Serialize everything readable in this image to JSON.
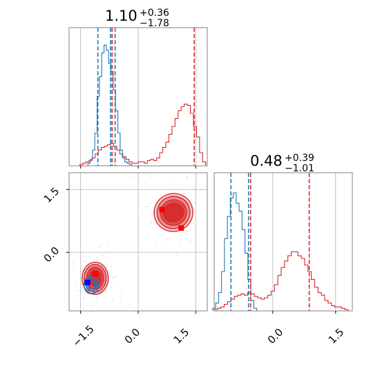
{
  "chart_data": {
    "type": "corner",
    "colors": {
      "blue": "#1f77b4",
      "red": "#d62728",
      "grid": "#b0b0b0",
      "axis": "#808080"
    },
    "param_1": {
      "title": {
        "value": "1.10",
        "upper": "+0.36",
        "lower": "−1.78"
      },
      "range": [
        -1.8,
        1.8
      ],
      "ticks": [
        -1.5,
        0.0,
        1.5
      ],
      "tick_labels": [
        "−1.5",
        "0.0",
        "1.5"
      ],
      "red_hist": {
        "x": [
          -1.56,
          -1.48,
          -1.4,
          -1.32,
          -1.24,
          -1.16,
          -1.08,
          -1.0,
          -0.92,
          -0.84,
          -0.76,
          -0.68,
          -0.6,
          -0.52,
          -0.44,
          -0.36,
          -0.28,
          -0.2,
          -0.12,
          -0.04,
          0.04,
          0.12,
          0.2,
          0.28,
          0.36,
          0.44,
          0.52,
          0.6,
          0.68,
          0.76,
          0.84,
          0.92,
          1.0,
          1.08,
          1.16,
          1.24,
          1.32,
          1.4,
          1.48,
          1.56,
          1.64,
          1.72
        ],
        "y": [
          0,
          1,
          2,
          3,
          4,
          6,
          9,
          12,
          14,
          15,
          16,
          17,
          15,
          12,
          9,
          7,
          5,
          3,
          2,
          2,
          3,
          3,
          2,
          4,
          5,
          4,
          6,
          10,
          14,
          18,
          24,
          30,
          36,
          42,
          45,
          47,
          46,
          40,
          30,
          22,
          10,
          3
        ]
      },
      "blue_hist": {
        "x": [
          -1.28,
          -1.22,
          -1.16,
          -1.1,
          -1.04,
          -0.98,
          -0.92,
          -0.86,
          -0.8,
          -0.74,
          -0.68,
          -0.62,
          -0.56,
          -0.5,
          -0.44,
          -0.38,
          -0.32,
          -0.26,
          -0.2
        ],
        "y": [
          2,
          5,
          12,
          25,
          53,
          68,
          86,
          92,
          88,
          78,
          72,
          58,
          42,
          25,
          12,
          6,
          3,
          2,
          1
        ]
      },
      "blue_quantiles": [
        -1.05,
        -0.72,
        -0.6
      ],
      "red_quantiles": [
        -0.68,
        1.46
      ],
      "ylim": [
        0,
        100
      ]
    },
    "param_2": {
      "title": {
        "value": "0.48",
        "upper": "+0.39",
        "lower": "−1.01"
      },
      "range": [
        -1.4,
        1.9
      ],
      "ticks": [
        -1.5,
        0.0,
        1.5
      ],
      "tick_labels": [
        "−1.5",
        "0.0",
        "1.5"
      ],
      "red_hist": {
        "x": [
          -1.36,
          -1.28,
          -1.2,
          -1.12,
          -1.04,
          -0.96,
          -0.88,
          -0.8,
          -0.72,
          -0.64,
          -0.56,
          -0.48,
          -0.4,
          -0.32,
          -0.24,
          -0.16,
          -0.08,
          0.0,
          0.08,
          0.16,
          0.24,
          0.32,
          0.4,
          0.48,
          0.56,
          0.64,
          0.72,
          0.8,
          0.88,
          0.96,
          1.04,
          1.12,
          1.2,
          1.28,
          1.36,
          1.44,
          1.52,
          1.6,
          1.68,
          1.76,
          1.84
        ],
        "y": [
          1,
          2,
          3,
          5,
          7,
          9,
          11,
          12,
          13,
          12,
          14,
          13,
          11,
          10,
          9,
          10,
          12,
          15,
          20,
          27,
          33,
          38,
          42,
          45,
          45,
          42,
          40,
          35,
          30,
          24,
          18,
          14,
          12,
          8,
          6,
          4,
          3,
          3,
          2,
          1,
          0
        ]
      },
      "blue_hist": {
        "x": [
          -1.4,
          -1.33,
          -1.26,
          -1.19,
          -1.12,
          -1.05,
          -0.98,
          -0.91,
          -0.84,
          -0.77,
          -0.7,
          -0.63,
          -0.56,
          -0.49,
          -0.42
        ],
        "y": [
          2,
          6,
          14,
          30,
          55,
          72,
          86,
          90,
          82,
          76,
          62,
          44,
          24,
          8,
          2
        ]
      },
      "blue_quantiles": [
        -1.0,
        -0.58
      ],
      "red_quantiles": [
        -0.53,
        0.87
      ],
      "ylim": [
        0,
        100
      ]
    },
    "joint": {
      "xlim": [
        -1.8,
        1.8
      ],
      "ylim": [
        -1.4,
        1.9
      ],
      "xticks": [
        -1.5,
        0.0,
        1.5
      ],
      "yticks": [
        0.0,
        1.5
      ],
      "xtick_labels": [
        "−1.5",
        "0.0",
        "1.5"
      ],
      "ytick_labels": [
        "0.0",
        "1.5"
      ],
      "red_markers": [
        [
          0.62,
          1.02
        ],
        [
          1.12,
          0.58
        ],
        [
          -1.12,
          -0.52
        ]
      ],
      "blue_marker": [
        -1.32,
        -0.72
      ],
      "red_modes": [
        {
          "center": [
            0.92,
            0.95
          ],
          "rx": [
            0.48,
            0.62,
            0.78,
            0.92
          ],
          "ry": [
            0.4,
            0.55,
            0.7,
            0.82
          ],
          "angle": -20
        },
        {
          "center": [
            -1.12,
            -0.62
          ],
          "rx": [
            0.28,
            0.4,
            0.52,
            0.62
          ],
          "ry": [
            0.35,
            0.48,
            0.6,
            0.7
          ],
          "angle": 0
        }
      ],
      "blue_mode": {
        "center": [
          -1.22,
          -0.78
        ],
        "rx": [
          0.14,
          0.22,
          0.32
        ],
        "ry": [
          0.16,
          0.25,
          0.35
        ],
        "angle": 0
      }
    }
  }
}
